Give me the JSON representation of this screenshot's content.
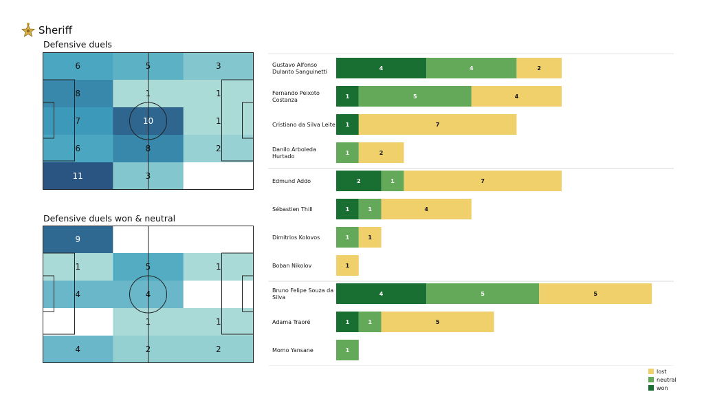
{
  "team": {
    "name": "Sheriff",
    "logo_icon": "sheriff-star-icon"
  },
  "colors": {
    "won": "#196f32",
    "neutral": "#64a85a",
    "lost": "#f0d06a"
  },
  "pitch_titles": [
    "Defensive duels",
    "Defensive duels won & neutral"
  ],
  "legend": [
    "lost",
    "neutral",
    "won"
  ],
  "chart_data": [
    {
      "type": "heatmap",
      "title": "Defensive duels",
      "rows": 5,
      "cols": 3,
      "values": [
        [
          6,
          5,
          3
        ],
        [
          8,
          1,
          1
        ],
        [
          7,
          10,
          1
        ],
        [
          6,
          8,
          2
        ],
        [
          11,
          3,
          0
        ]
      ],
      "labels": [
        [
          "6",
          "5",
          "3"
        ],
        [
          "8",
          "1",
          "1"
        ],
        [
          "7",
          "10",
          "1"
        ],
        [
          "6",
          "8",
          "2"
        ],
        [
          "11",
          "3",
          ""
        ]
      ]
    },
    {
      "type": "heatmap",
      "title": "Defensive duels won & neutral",
      "rows": 5,
      "cols": 3,
      "values": [
        [
          9,
          0,
          0
        ],
        [
          1,
          5,
          1
        ],
        [
          4,
          4,
          0
        ],
        [
          0,
          1,
          1
        ],
        [
          4,
          2,
          2
        ]
      ],
      "labels": [
        [
          "9",
          "",
          ""
        ],
        [
          "1",
          "5",
          "1"
        ],
        [
          "4",
          "4",
          ""
        ],
        [
          "",
          "1",
          "1"
        ],
        [
          "4",
          "2",
          "2"
        ]
      ]
    },
    {
      "type": "bar",
      "stacked": true,
      "orientation": "horizontal",
      "series_names": [
        "won",
        "neutral",
        "lost"
      ],
      "players": [
        {
          "name": [
            "Gustavo Alfonso",
            "Dulanto Sanguinetti"
          ],
          "won": 4,
          "neutral": 4,
          "lost": 2
        },
        {
          "name": [
            "Fernando Peixoto",
            "Costanza"
          ],
          "won": 1,
          "neutral": 5,
          "lost": 4
        },
        {
          "name": [
            "Cristiano da Silva Leite"
          ],
          "won": 1,
          "neutral": 0,
          "lost": 7
        },
        {
          "name": [
            "Danilo Arboleda",
            "Hurtado"
          ],
          "won": 0,
          "neutral": 1,
          "lost": 2
        },
        {
          "name": [
            "Edmund Addo"
          ],
          "won": 2,
          "neutral": 1,
          "lost": 7
        },
        {
          "name": [
            "Sébastien Thill"
          ],
          "won": 1,
          "neutral": 1,
          "lost": 4
        },
        {
          "name": [
            "Dimitrios Kolovos"
          ],
          "won": 0,
          "neutral": 1,
          "lost": 1
        },
        {
          "name": [
            "Boban Nikolov"
          ],
          "won": 0,
          "neutral": 0,
          "lost": 1
        },
        {
          "name": [
            "Bruno Felipe Souza da",
            "Silva"
          ],
          "won": 4,
          "neutral": 5,
          "lost": 5
        },
        {
          "name": [
            "Adama Traoré"
          ],
          "won": 1,
          "neutral": 1,
          "lost": 5
        },
        {
          "name": [
            "Momo Yansane"
          ],
          "won": 0,
          "neutral": 1,
          "lost": 0
        }
      ]
    }
  ]
}
